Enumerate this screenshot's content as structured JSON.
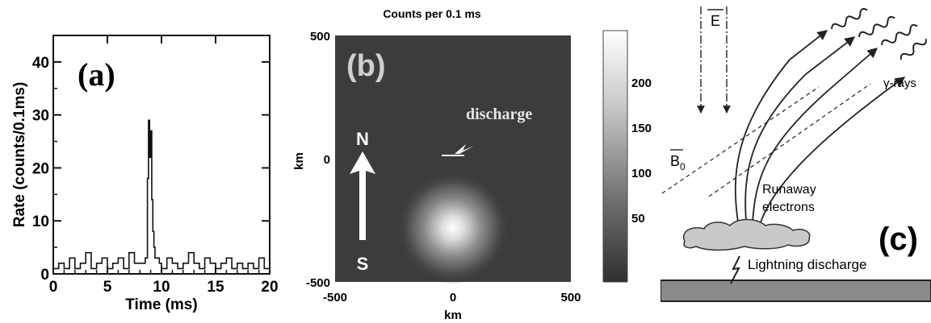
{
  "panel_a": {
    "label": "(a)",
    "xlabel": "Time (ms)",
    "ylabel": "Rate (counts/0.1ms)",
    "x_ticks": [
      "0",
      "5",
      "10",
      "15",
      "20"
    ],
    "y_ticks": [
      "0",
      "10",
      "20",
      "30",
      "40"
    ]
  },
  "panel_b": {
    "label": "(b)",
    "title": "Counts per 0.1 ms",
    "xlabel": "km",
    "ylabel": "km",
    "x_ticks": [
      "-500",
      "0",
      "500"
    ],
    "y_ticks": [
      "500",
      "0",
      "-500"
    ],
    "north": "N",
    "south": "S",
    "discharge_label": "discharge",
    "colorbar_ticks": [
      "200",
      "150",
      "100",
      "50"
    ]
  },
  "panel_c": {
    "label": "(c)",
    "e_field": "E",
    "b_field": "B",
    "b_subscript": "0",
    "gamma_label": "γ-rays",
    "runaway_label_1": "Runaway",
    "runaway_label_2": "electrons",
    "lightning_label": "Lightning discharge"
  },
  "chart_data": [
    {
      "type": "line",
      "title": "",
      "xlabel": "Time (ms)",
      "ylabel": "Rate (counts/0.1ms)",
      "xlim": [
        0,
        20
      ],
      "ylim": [
        0,
        45
      ],
      "x": [
        0,
        0.5,
        1,
        1.5,
        2,
        2.5,
        3,
        3.5,
        4,
        4.5,
        5,
        5.5,
        6,
        6.5,
        7,
        7.5,
        8,
        8.5,
        8.7,
        8.8,
        8.9,
        9.0,
        9.1,
        9.2,
        9.3,
        9.4,
        9.6,
        9.8,
        10,
        10.5,
        11,
        11.5,
        12,
        12.5,
        13,
        13.5,
        14,
        14.5,
        15,
        15.5,
        16,
        16.5,
        17,
        17.5,
        18,
        18.5,
        19,
        19.5,
        20
      ],
      "y": [
        1,
        2,
        1,
        3,
        1,
        2,
        4,
        1,
        2,
        3,
        1,
        2,
        3,
        1,
        4,
        2,
        2,
        3,
        18,
        29,
        22,
        27,
        14,
        8,
        5,
        3,
        3,
        2,
        1,
        3,
        2,
        1,
        2,
        4,
        2,
        1,
        3,
        2,
        1,
        2,
        3,
        1,
        2,
        1,
        2,
        1,
        3,
        1,
        1
      ]
    },
    {
      "type": "heatmap",
      "title": "Counts per 0.1 ms",
      "xlabel": "km",
      "ylabel": "km",
      "xlim": [
        -500,
        500
      ],
      "ylim": [
        -500,
        500
      ],
      "peak_x": 0,
      "peak_y": -280,
      "discharge_x": 0,
      "discharge_y": 0,
      "colorbar_ticks": [
        50,
        100,
        150,
        200
      ]
    }
  ]
}
